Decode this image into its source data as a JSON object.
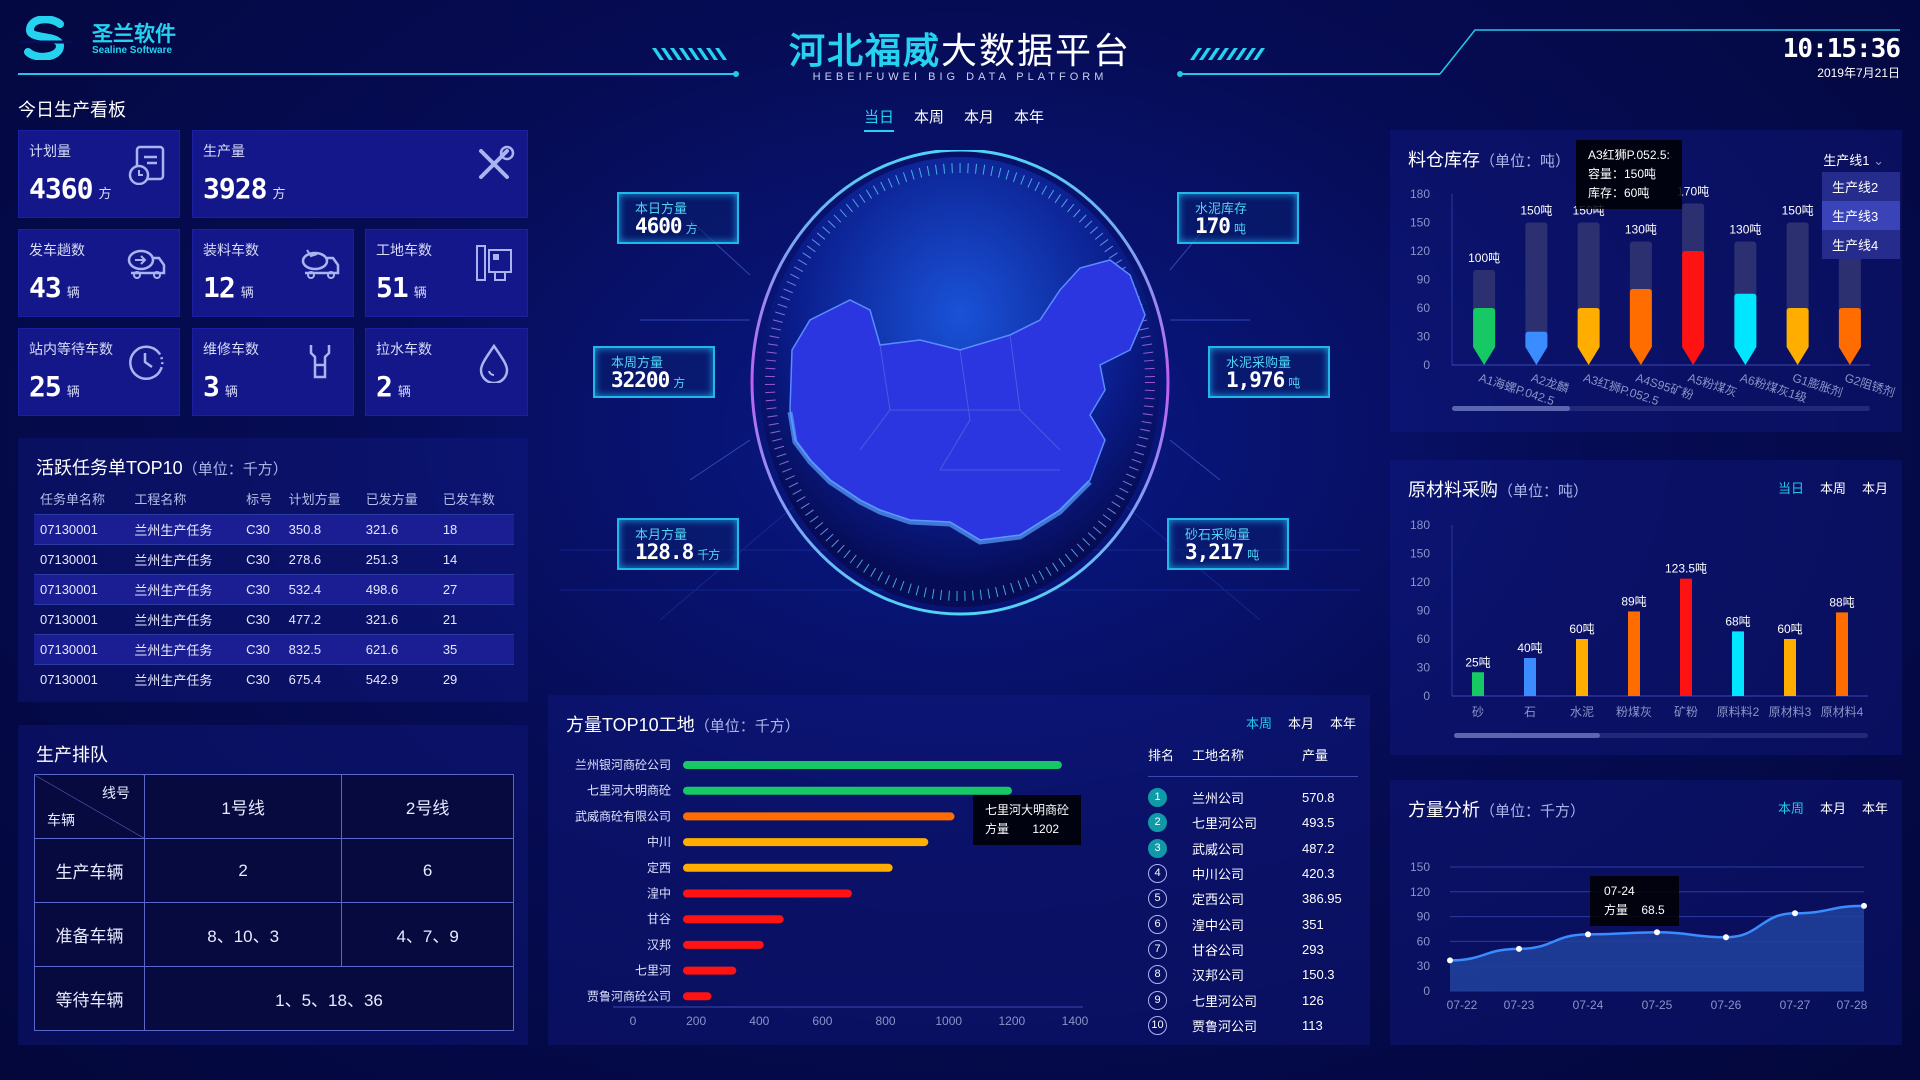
{
  "header": {
    "logo_cn": "圣兰软件",
    "logo_en": "Sealine Software",
    "title_accent": "河北福威",
    "title_main": "大数据平台",
    "subtitle": "HEBEIFUWEI BIG DATA PLATFORM",
    "time": "10:15:36",
    "date": "2019年7月21日",
    "accent": "#25d3f0"
  },
  "center_tabs": [
    {
      "label": "当日",
      "active": true
    },
    {
      "label": "本周"
    },
    {
      "label": "本月"
    },
    {
      "label": "本年"
    }
  ],
  "board": {
    "title": "今日生产看板",
    "cards": [
      {
        "label": "计划量",
        "value": "4360",
        "unit": "方",
        "icon": "document-clock-icon"
      },
      {
        "label": "生产量",
        "value": "3928",
        "unit": "方",
        "icon": "tools-icon"
      },
      {
        "label": "发车趟数",
        "value": "43",
        "unit": "辆",
        "icon": "truck-out-icon"
      },
      {
        "label": "装料车数",
        "value": "12",
        "unit": "辆",
        "icon": "truck-load-icon"
      },
      {
        "label": "工地车数",
        "value": "51",
        "unit": "辆",
        "icon": "site-machine-icon"
      },
      {
        "label": "站内等待车数",
        "value": "25",
        "unit": "辆",
        "icon": "clock-icon"
      },
      {
        "label": "维修车数",
        "value": "3",
        "unit": "辆",
        "icon": "wrench-icon"
      },
      {
        "label": "拉水车数",
        "value": "2",
        "unit": "辆",
        "icon": "water-drop-icon"
      }
    ]
  },
  "tasks": {
    "title": "活跃任务单TOP10",
    "unit": "（单位：千方）",
    "columns": [
      "任务单名称",
      "工程名称",
      "标号",
      "计划方量",
      "已发方量",
      "已发车数"
    ],
    "rows": [
      [
        "07130001",
        "兰州生产任务",
        "C30",
        "350.8",
        "321.6",
        "18"
      ],
      [
        "07130001",
        "兰州生产任务",
        "C30",
        "278.6",
        "251.3",
        "14"
      ],
      [
        "07130001",
        "兰州生产任务",
        "C30",
        "532.4",
        "498.6",
        "27"
      ],
      [
        "07130001",
        "兰州生产任务",
        "C30",
        "477.2",
        "321.6",
        "21"
      ],
      [
        "07130001",
        "兰州生产任务",
        "C30",
        "832.5",
        "621.6",
        "35"
      ],
      [
        "07130001",
        "兰州生产任务",
        "C30",
        "675.4",
        "542.9",
        "29"
      ]
    ]
  },
  "queue": {
    "title": "生产排队",
    "corner_top": "线号",
    "corner_bottom": "车辆",
    "lines": [
      "1号线",
      "2号线"
    ],
    "rows": [
      {
        "label": "生产车辆",
        "values": [
          "2",
          "6"
        ]
      },
      {
        "label": "准备车辆",
        "values": [
          "8、10、3",
          "4、7、9"
        ]
      }
    ],
    "waiting": {
      "label": "等待车辆",
      "value": "1、5、18、36"
    }
  },
  "globe": {
    "boxes": [
      {
        "label": "本日方量",
        "value": "4600",
        "unit": "方"
      },
      {
        "label": "本周方量",
        "value": "32200",
        "unit": "方"
      },
      {
        "label": "本月方量",
        "value": "128.8",
        "unit": "千方"
      },
      {
        "label": "水泥库存",
        "value": "170",
        "unit": "吨"
      },
      {
        "label": "水泥采购量",
        "value": "1,976",
        "unit": "吨"
      },
      {
        "label": "砂石采购量",
        "value": "3,217",
        "unit": "吨"
      }
    ]
  },
  "chart_data": [
    {
      "id": "inventory",
      "type": "bar",
      "title": "料仓库存",
      "unit": "（单位：吨）",
      "categories": [
        "A1海螺P.042.5",
        "A2龙麟",
        "A3红狮P.052.5",
        "A4S95矿粉",
        "A5粉煤灰",
        "A6粉煤灰1级",
        "G1膨胀剂",
        "G2阻锈剂"
      ],
      "series": [
        {
          "name": "容量",
          "values": [
            100,
            150,
            150,
            130,
            170,
            130,
            150,
            120
          ]
        },
        {
          "name": "库存",
          "values": [
            60,
            35,
            60,
            80,
            120,
            75,
            60,
            60
          ]
        }
      ],
      "capacity_labels": [
        "100吨",
        "150吨",
        "150吨",
        "130吨",
        "170吨",
        "130吨",
        "150吨",
        "120吨"
      ],
      "colors": [
        "#17c964",
        "#3a8cff",
        "#ffae00",
        "#ff6c00",
        "#ff1212",
        "#00e6ff",
        "#ffae00",
        "#ff6c00"
      ],
      "ylim": [
        0,
        180
      ],
      "yticks": [
        0,
        30,
        60,
        90,
        120,
        150,
        180
      ],
      "tooltip": {
        "title": "A3红狮P.052.5:",
        "line1": "容量：150吨",
        "line2": "库存：60吨"
      },
      "dropdown": {
        "selected": "生产线1",
        "options": [
          "生产线2",
          "生产线3",
          "生产线4"
        ],
        "highlighted": "生产线3"
      }
    },
    {
      "id": "purchase",
      "type": "bar",
      "title": "原材料采购",
      "unit": "（单位：吨）",
      "tabs": [
        {
          "label": "当日",
          "active": true
        },
        {
          "label": "本周"
        },
        {
          "label": "本月"
        }
      ],
      "categories": [
        "砂",
        "石",
        "水泥",
        "粉煤灰",
        "矿粉",
        "原料料2",
        "原材料3",
        "原材料4"
      ],
      "values": [
        25,
        40,
        60,
        89,
        123.5,
        68,
        60,
        88
      ],
      "labels": [
        "25吨",
        "40吨",
        "60吨",
        "89吨",
        "123.5吨",
        "68吨",
        "60吨",
        "88吨"
      ],
      "colors": [
        "#17c964",
        "#3a8cff",
        "#ffae00",
        "#ff6c00",
        "#ff1212",
        "#00e6ff",
        "#ffae00",
        "#ff6c00"
      ],
      "ylim": [
        0,
        180
      ],
      "yticks": [
        0,
        30,
        60,
        90,
        120,
        150,
        180
      ]
    },
    {
      "id": "volume",
      "type": "area",
      "title": "方量分析",
      "unit": "（单位：千方）",
      "tabs": [
        {
          "label": "本周",
          "active": true
        },
        {
          "label": "本月"
        },
        {
          "label": "本年"
        }
      ],
      "x": [
        "07-22",
        "07-23",
        "07-24",
        "07-25",
        "07-26",
        "07-27",
        "07-28"
      ],
      "series": [
        {
          "name": "方量",
          "values": [
            37,
            51,
            68.5,
            71,
            65,
            94,
            103
          ]
        }
      ],
      "ylim": [
        0,
        150
      ],
      "yticks": [
        0,
        30,
        60,
        90,
        120,
        150
      ],
      "grid": true,
      "tooltip": {
        "title": "07-24",
        "name": "方量",
        "value": "68.5"
      }
    },
    {
      "id": "top10",
      "type": "bar",
      "orientation": "horizontal",
      "title": "方量TOP10工地",
      "unit": "（单位：千方）",
      "tabs": [
        {
          "label": "本周",
          "active": true
        },
        {
          "label": "本月"
        },
        {
          "label": "本年"
        }
      ],
      "categories": [
        "兰州银河商砼公司",
        "七里河大明商砼",
        "武威商砼有限公司",
        "中川",
        "定西",
        "湟中",
        "甘谷",
        "汉邦",
        "七里河",
        "贾鲁河商砼公司"
      ],
      "values": [
        1360,
        1202,
        1020,
        937,
        824,
        695,
        479,
        416,
        329,
        250
      ],
      "colors": [
        "#17c964",
        "#17c964",
        "#ff6c00",
        "#ffae00",
        "#ffae00",
        "#ff1212",
        "#ff1212",
        "#ff1212",
        "#ff1212",
        "#ff1212"
      ],
      "xlim": [
        0,
        1400
      ],
      "xticks": [
        0,
        200,
        400,
        600,
        800,
        1000,
        1200,
        1400
      ],
      "tooltip": {
        "title": "七里河大明商砼",
        "name": "方量",
        "value": "1202"
      },
      "ranking": {
        "columns": [
          "排名",
          "工地名称",
          "产量"
        ],
        "rows": [
          [
            "1",
            "兰州公司",
            "570.8"
          ],
          [
            "2",
            "七里河公司",
            "493.5"
          ],
          [
            "3",
            "武威公司",
            "487.2"
          ],
          [
            "4",
            "中川公司",
            "420.3"
          ],
          [
            "5",
            "定西公司",
            "386.95"
          ],
          [
            "6",
            "湟中公司",
            "351"
          ],
          [
            "7",
            "甘谷公司",
            "293"
          ],
          [
            "8",
            "汉邦公司",
            "150.3"
          ],
          [
            "9",
            "七里河公司",
            "126"
          ],
          [
            "10",
            "贾鲁河公司",
            "113"
          ]
        ]
      }
    }
  ]
}
